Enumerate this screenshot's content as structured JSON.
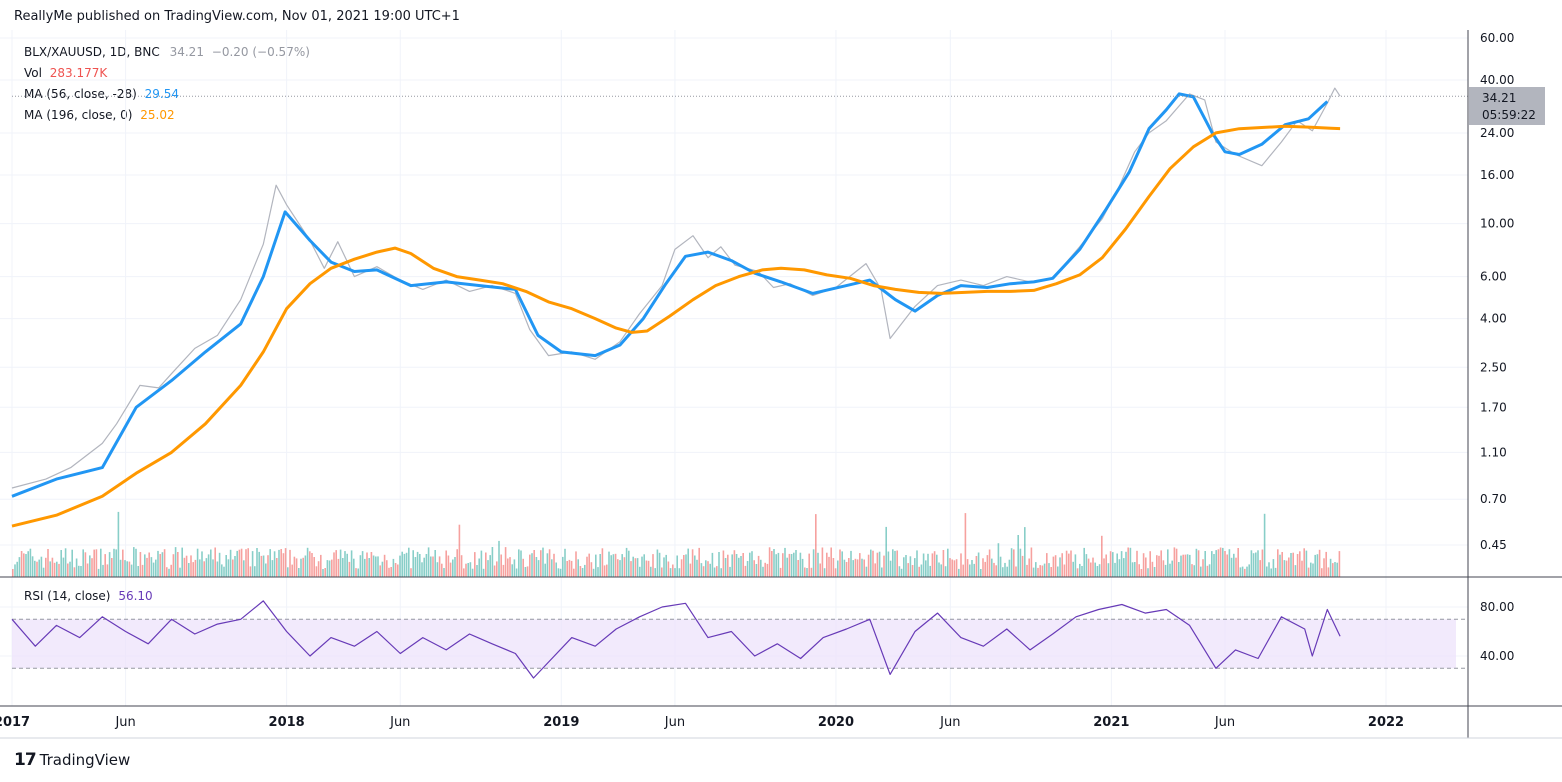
{
  "header": {
    "publisher_line": "ReallyMe published on TradingView.com, Nov 01, 2021 19:00 UTC+1"
  },
  "legend": {
    "symbol": "BLX/XAUUSD, 1D, BNC",
    "last": "34.21",
    "change": "−0.20 (−0.57%)",
    "vol_label": "Vol",
    "vol_value": "283.177K",
    "ma1_label": "MA (56, close, -28)",
    "ma1_value": "29.54",
    "ma2_label": "MA (196, close, 0)",
    "ma2_value": "25.02",
    "rsi_label": "RSI (14, close)",
    "rsi_value": "56.10"
  },
  "price_badge": {
    "price": "34.21",
    "countdown": "05:59:22"
  },
  "footer": {
    "brand": "TradingView",
    "logo": "17"
  },
  "colors": {
    "price": "#b2b5be",
    "ma56": "#2196f3",
    "ma196": "#ff9800",
    "rsi": "#673ab7",
    "rsi_band": "#ede1fb",
    "vol_up": "#26a69a",
    "vol_down": "#ef5350"
  },
  "chart_data": {
    "type": "line",
    "scale": "log",
    "x_ticks": [
      "2017",
      "Jun",
      "2018",
      "Jun",
      "2019",
      "Jun",
      "2020",
      "Jun",
      "2021",
      "Jun",
      "2022"
    ],
    "y_ticks": [
      "60.00",
      "40.00",
      "24.00",
      "16.00",
      "10.00",
      "6.00",
      "4.00",
      "2.50",
      "1.70",
      "1.10",
      "0.70",
      "0.45"
    ],
    "rsi_ticks": [
      "80.00",
      "40.00"
    ],
    "rsi_band": [
      70,
      30
    ],
    "series": [
      {
        "name": "BLX/XAUUSD",
        "points": [
          [
            "2017-01-01",
            0.78
          ],
          [
            "2017-02-15",
            0.85
          ],
          [
            "2017-03-20",
            0.95
          ],
          [
            "2017-05-01",
            1.2
          ],
          [
            "2017-05-20",
            1.45
          ],
          [
            "2017-06-20",
            2.1
          ],
          [
            "2017-07-15",
            2.05
          ],
          [
            "2017-08-01",
            2.35
          ],
          [
            "2017-09-01",
            3.0
          ],
          [
            "2017-10-01",
            3.4
          ],
          [
            "2017-11-01",
            4.8
          ],
          [
            "2017-12-01",
            8.2
          ],
          [
            "2017-12-18",
            14.5
          ],
          [
            "2018-01-01",
            12.0
          ],
          [
            "2018-02-01",
            8.5
          ],
          [
            "2018-02-20",
            6.5
          ],
          [
            "2018-03-10",
            8.4
          ],
          [
            "2018-04-01",
            6.0
          ],
          [
            "2018-05-01",
            6.6
          ],
          [
            "2018-06-01",
            5.8
          ],
          [
            "2018-07-01",
            5.3
          ],
          [
            "2018-08-01",
            5.8
          ],
          [
            "2018-09-01",
            5.2
          ],
          [
            "2018-10-01",
            5.5
          ],
          [
            "2018-11-01",
            5.1
          ],
          [
            "2018-11-20",
            3.6
          ],
          [
            "2018-12-15",
            2.8
          ],
          [
            "2019-01-15",
            2.9
          ],
          [
            "2019-02-15",
            2.7
          ],
          [
            "2019-03-20",
            3.2
          ],
          [
            "2019-04-15",
            4.2
          ],
          [
            "2019-05-15",
            5.5
          ],
          [
            "2019-06-01",
            7.8
          ],
          [
            "2019-06-25",
            8.9
          ],
          [
            "2019-07-15",
            7.2
          ],
          [
            "2019-08-01",
            8.0
          ],
          [
            "2019-08-20",
            6.7
          ],
          [
            "2019-09-20",
            6.3
          ],
          [
            "2019-10-10",
            5.4
          ],
          [
            "2019-11-01",
            5.6
          ],
          [
            "2019-12-01",
            5.0
          ],
          [
            "2020-01-01",
            5.4
          ],
          [
            "2020-02-10",
            6.8
          ],
          [
            "2020-03-01",
            5.3
          ],
          [
            "2020-03-13",
            3.3
          ],
          [
            "2020-04-15",
            4.5
          ],
          [
            "2020-05-15",
            5.5
          ],
          [
            "2020-06-15",
            5.8
          ],
          [
            "2020-07-15",
            5.5
          ],
          [
            "2020-08-15",
            6.0
          ],
          [
            "2020-09-15",
            5.7
          ],
          [
            "2020-10-15",
            5.9
          ],
          [
            "2020-11-20",
            8.0
          ],
          [
            "2020-12-20",
            10.5
          ],
          [
            "2021-01-10",
            14.0
          ],
          [
            "2021-02-01",
            20.0
          ],
          [
            "2021-02-20",
            24.0
          ],
          [
            "2021-03-15",
            27.0
          ],
          [
            "2021-04-15",
            35.0
          ],
          [
            "2021-05-05",
            33.0
          ],
          [
            "2021-05-20",
            22.0
          ],
          [
            "2021-06-15",
            19.5
          ],
          [
            "2021-07-20",
            17.5
          ],
          [
            "2021-08-15",
            22.0
          ],
          [
            "2021-09-05",
            27.0
          ],
          [
            "2021-09-25",
            24.5
          ],
          [
            "2021-10-15",
            32.0
          ],
          [
            "2021-10-25",
            37.0
          ],
          [
            "2021-11-01",
            34.21
          ]
        ]
      },
      {
        "name": "MA (56, close, -28)",
        "points": [
          [
            "2017-01-01",
            0.72
          ],
          [
            "2017-03-01",
            0.85
          ],
          [
            "2017-05-01",
            0.95
          ],
          [
            "2017-06-15",
            1.7
          ],
          [
            "2017-08-01",
            2.2
          ],
          [
            "2017-09-15",
            2.9
          ],
          [
            "2017-11-01",
            3.8
          ],
          [
            "2017-12-01",
            6.0
          ],
          [
            "2017-12-30",
            11.2
          ],
          [
            "2018-02-01",
            8.5
          ],
          [
            "2018-03-01",
            6.9
          ],
          [
            "2018-04-01",
            6.3
          ],
          [
            "2018-05-01",
            6.4
          ],
          [
            "2018-06-15",
            5.5
          ],
          [
            "2018-08-01",
            5.7
          ],
          [
            "2018-09-15",
            5.5
          ],
          [
            "2018-11-01",
            5.3
          ],
          [
            "2018-12-01",
            3.4
          ],
          [
            "2019-01-01",
            2.9
          ],
          [
            "2019-02-15",
            2.8
          ],
          [
            "2019-03-20",
            3.1
          ],
          [
            "2019-04-20",
            4.0
          ],
          [
            "2019-05-20",
            5.6
          ],
          [
            "2019-06-15",
            7.3
          ],
          [
            "2019-07-15",
            7.6
          ],
          [
            "2019-08-15",
            7.0
          ],
          [
            "2019-09-15",
            6.2
          ],
          [
            "2019-10-20",
            5.7
          ],
          [
            "2019-12-01",
            5.1
          ],
          [
            "2020-01-15",
            5.5
          ],
          [
            "2020-02-15",
            5.8
          ],
          [
            "2020-03-20",
            4.8
          ],
          [
            "2020-04-15",
            4.3
          ],
          [
            "2020-05-15",
            5.0
          ],
          [
            "2020-06-15",
            5.5
          ],
          [
            "2020-07-20",
            5.4
          ],
          [
            "2020-08-20",
            5.6
          ],
          [
            "2020-09-20",
            5.7
          ],
          [
            "2020-10-15",
            5.9
          ],
          [
            "2020-11-20",
            7.8
          ],
          [
            "2020-12-25",
            11.5
          ],
          [
            "2021-01-25",
            16.5
          ],
          [
            "2021-02-20",
            25.0
          ],
          [
            "2021-03-15",
            30.0
          ],
          [
            "2021-04-01",
            35.0
          ],
          [
            "2021-04-20",
            34.0
          ],
          [
            "2021-05-15",
            24.0
          ],
          [
            "2021-06-01",
            20.0
          ],
          [
            "2021-06-20",
            19.5
          ],
          [
            "2021-07-20",
            21.5
          ],
          [
            "2021-08-20",
            26.0
          ],
          [
            "2021-09-20",
            27.5
          ],
          [
            "2021-10-15",
            32.5
          ]
        ]
      },
      {
        "name": "MA (196, close, 0)",
        "points": [
          [
            "2017-01-01",
            0.54
          ],
          [
            "2017-03-01",
            0.6
          ],
          [
            "2017-05-01",
            0.72
          ],
          [
            "2017-06-15",
            0.9
          ],
          [
            "2017-08-01",
            1.1
          ],
          [
            "2017-09-15",
            1.45
          ],
          [
            "2017-11-01",
            2.1
          ],
          [
            "2017-12-01",
            2.9
          ],
          [
            "2018-01-01",
            4.4
          ],
          [
            "2018-02-01",
            5.6
          ],
          [
            "2018-03-01",
            6.5
          ],
          [
            "2018-04-01",
            7.1
          ],
          [
            "2018-05-01",
            7.6
          ],
          [
            "2018-05-25",
            7.9
          ],
          [
            "2018-06-15",
            7.5
          ],
          [
            "2018-07-15",
            6.5
          ],
          [
            "2018-08-15",
            6.0
          ],
          [
            "2018-09-15",
            5.8
          ],
          [
            "2018-10-15",
            5.6
          ],
          [
            "2018-11-15",
            5.2
          ],
          [
            "2018-12-15",
            4.7
          ],
          [
            "2019-01-15",
            4.4
          ],
          [
            "2019-02-15",
            4.0
          ],
          [
            "2019-03-15",
            3.65
          ],
          [
            "2019-04-05",
            3.5
          ],
          [
            "2019-04-25",
            3.55
          ],
          [
            "2019-05-25",
            4.1
          ],
          [
            "2019-06-25",
            4.8
          ],
          [
            "2019-07-25",
            5.5
          ],
          [
            "2019-08-25",
            6.0
          ],
          [
            "2019-09-25",
            6.4
          ],
          [
            "2019-10-20",
            6.5
          ],
          [
            "2019-11-20",
            6.4
          ],
          [
            "2019-12-20",
            6.1
          ],
          [
            "2020-01-20",
            5.9
          ],
          [
            "2020-02-20",
            5.5
          ],
          [
            "2020-03-20",
            5.3
          ],
          [
            "2020-04-20",
            5.15
          ],
          [
            "2020-05-20",
            5.1
          ],
          [
            "2020-06-20",
            5.15
          ],
          [
            "2020-07-20",
            5.2
          ],
          [
            "2020-08-20",
            5.2
          ],
          [
            "2020-09-20",
            5.25
          ],
          [
            "2020-10-20",
            5.6
          ],
          [
            "2020-11-20",
            6.1
          ],
          [
            "2020-12-20",
            7.2
          ],
          [
            "2021-01-20",
            9.5
          ],
          [
            "2021-02-20",
            13.0
          ],
          [
            "2021-03-20",
            17.0
          ],
          [
            "2021-04-20",
            21.0
          ],
          [
            "2021-05-20",
            24.0
          ],
          [
            "2021-06-20",
            25.0
          ],
          [
            "2021-07-20",
            25.3
          ],
          [
            "2021-08-20",
            25.6
          ],
          [
            "2021-09-20",
            25.4
          ],
          [
            "2021-10-20",
            25.1
          ],
          [
            "2021-11-01",
            25.02
          ]
        ]
      },
      {
        "name": "RSI (14, close)",
        "points": [
          [
            "2017-01-01",
            70
          ],
          [
            "2017-02-01",
            48
          ],
          [
            "2017-03-01",
            65
          ],
          [
            "2017-04-01",
            55
          ],
          [
            "2017-05-01",
            72
          ],
          [
            "2017-06-01",
            60
          ],
          [
            "2017-07-01",
            50
          ],
          [
            "2017-08-01",
            70
          ],
          [
            "2017-09-01",
            58
          ],
          [
            "2017-10-01",
            66
          ],
          [
            "2017-11-01",
            70
          ],
          [
            "2017-12-01",
            85
          ],
          [
            "2018-01-01",
            60
          ],
          [
            "2018-02-01",
            40
          ],
          [
            "2018-03-01",
            55
          ],
          [
            "2018-04-01",
            48
          ],
          [
            "2018-05-01",
            60
          ],
          [
            "2018-06-01",
            42
          ],
          [
            "2018-07-01",
            55
          ],
          [
            "2018-08-01",
            45
          ],
          [
            "2018-09-01",
            58
          ],
          [
            "2018-10-01",
            50
          ],
          [
            "2018-11-01",
            42
          ],
          [
            "2018-11-25",
            22
          ],
          [
            "2018-12-15",
            35
          ],
          [
            "2019-01-15",
            55
          ],
          [
            "2019-02-15",
            48
          ],
          [
            "2019-03-15",
            62
          ],
          [
            "2019-04-15",
            72
          ],
          [
            "2019-05-15",
            80
          ],
          [
            "2019-06-15",
            83
          ],
          [
            "2019-07-15",
            55
          ],
          [
            "2019-08-15",
            60
          ],
          [
            "2019-09-15",
            40
          ],
          [
            "2019-10-15",
            50
          ],
          [
            "2019-11-15",
            38
          ],
          [
            "2019-12-15",
            55
          ],
          [
            "2020-01-15",
            62
          ],
          [
            "2020-02-15",
            70
          ],
          [
            "2020-03-13",
            25
          ],
          [
            "2020-04-15",
            60
          ],
          [
            "2020-05-15",
            75
          ],
          [
            "2020-06-15",
            55
          ],
          [
            "2020-07-15",
            48
          ],
          [
            "2020-08-15",
            62
          ],
          [
            "2020-09-15",
            45
          ],
          [
            "2020-10-15",
            58
          ],
          [
            "2020-11-15",
            72
          ],
          [
            "2020-12-15",
            78
          ],
          [
            "2021-01-15",
            82
          ],
          [
            "2021-02-15",
            75
          ],
          [
            "2021-03-15",
            78
          ],
          [
            "2021-04-15",
            65
          ],
          [
            "2021-05-20",
            30
          ],
          [
            "2021-06-15",
            45
          ],
          [
            "2021-07-15",
            38
          ],
          [
            "2021-08-15",
            72
          ],
          [
            "2021-09-15",
            62
          ],
          [
            "2021-09-25",
            40
          ],
          [
            "2021-10-15",
            78
          ],
          [
            "2021-11-01",
            56.1
          ]
        ]
      }
    ]
  }
}
